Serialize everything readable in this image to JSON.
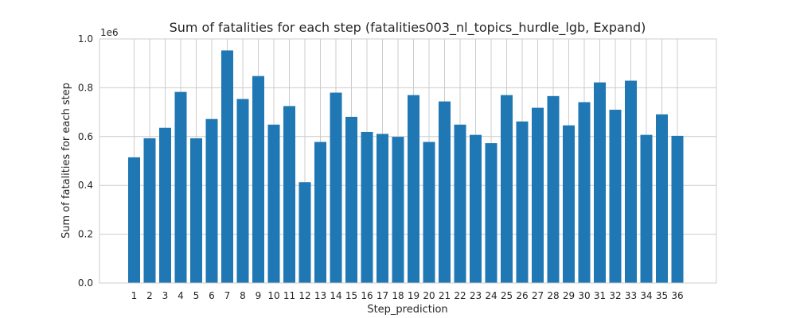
{
  "chart_data": {
    "type": "bar",
    "title": "Sum of fatalities for each step (fatalities003_nl_topics_hurdle_lgb, Expand)",
    "xlabel": "Step_prediction",
    "ylabel": "Sum of fatalities for each step",
    "y_multiplier_label": "1e6",
    "ylim": [
      0,
      1.0
    ],
    "y_ticks": [
      "0.0",
      "0.2",
      "0.4",
      "0.6",
      "0.8",
      "1.0"
    ],
    "grid": true,
    "bar_color": "#1f77b4",
    "categories": [
      "1",
      "2",
      "3",
      "4",
      "5",
      "6",
      "7",
      "8",
      "9",
      "10",
      "11",
      "12",
      "13",
      "14",
      "15",
      "16",
      "17",
      "18",
      "19",
      "20",
      "21",
      "22",
      "23",
      "24",
      "25",
      "26",
      "27",
      "28",
      "29",
      "30",
      "31",
      "32",
      "33",
      "34",
      "35",
      "36"
    ],
    "values": [
      0.515,
      0.593,
      0.636,
      0.783,
      0.593,
      0.672,
      0.953,
      0.754,
      0.848,
      0.649,
      0.725,
      0.413,
      0.578,
      0.78,
      0.681,
      0.619,
      0.611,
      0.599,
      0.77,
      0.578,
      0.744,
      0.649,
      0.607,
      0.573,
      0.77,
      0.662,
      0.718,
      0.766,
      0.646,
      0.741,
      0.822,
      0.71,
      0.829,
      0.607,
      0.691,
      0.603
    ]
  }
}
